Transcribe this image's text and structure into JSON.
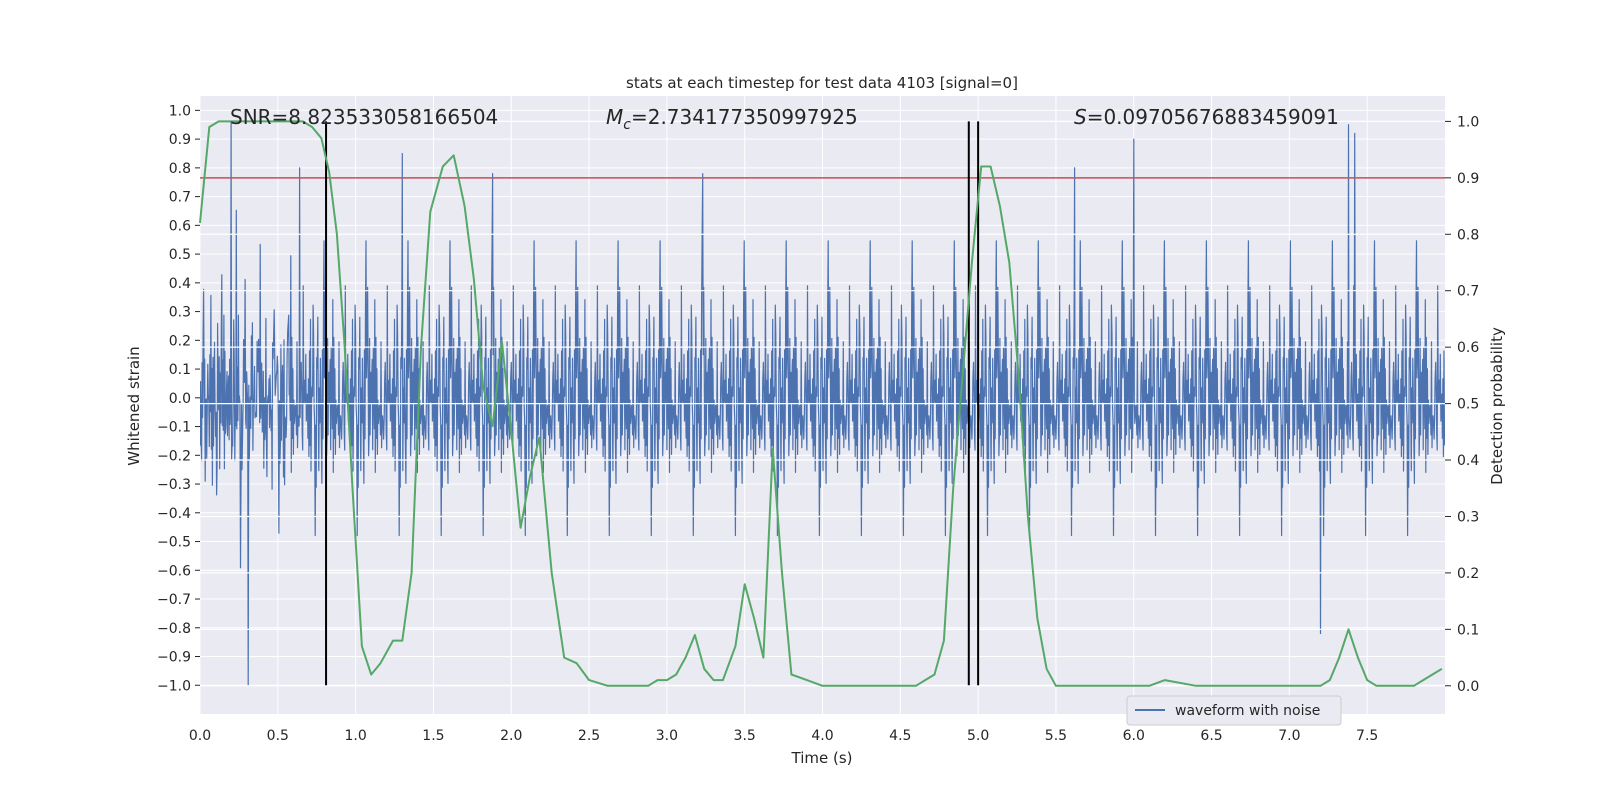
{
  "chart_data": {
    "type": "line",
    "title": "stats at each timestep for test data 4103 [signal=0]",
    "xlabel": "Time (s)",
    "ylabel_left": "Whitened strain",
    "ylabel_right": "Detection probability",
    "xlim": [
      0.0,
      8.0
    ],
    "ylim_left": [
      -1.1,
      1.05
    ],
    "ylim_right": [
      -0.05,
      1.045
    ],
    "x_ticks": [
      0.0,
      0.5,
      1.0,
      1.5,
      2.0,
      2.5,
      3.0,
      3.5,
      4.0,
      4.5,
      5.0,
      5.5,
      6.0,
      6.5,
      7.0,
      7.5
    ],
    "x_tick_labels": [
      "0.0",
      "0.5",
      "1.0",
      "1.5",
      "2.0",
      "2.5",
      "3.0",
      "3.5",
      "4.0",
      "4.5",
      "5.0",
      "5.5",
      "6.0",
      "6.5",
      "7.0",
      "7.5"
    ],
    "left_ticks": [
      1.0,
      0.9,
      0.8,
      0.7,
      0.6,
      0.5,
      0.4,
      0.3,
      0.2,
      0.1,
      0.0,
      -0.1,
      -0.2,
      -0.3,
      -0.4,
      -0.5,
      -0.6,
      -0.7,
      -0.8,
      -0.9,
      -1.0
    ],
    "left_tick_labels": [
      "1.0",
      "0.9",
      "0.8",
      "0.7",
      "0.6",
      "0.5",
      "0.4",
      "0.3",
      "0.2",
      "0.1",
      "0.0",
      "−0.1",
      "−0.2",
      "−0.3",
      "−0.4",
      "−0.5",
      "−0.6",
      "−0.7",
      "−0.8",
      "−0.9",
      "−1.0"
    ],
    "right_ticks": [
      1.0,
      0.9,
      0.8,
      0.7,
      0.6,
      0.5,
      0.4,
      0.3,
      0.2,
      0.1,
      0.0
    ],
    "right_tick_labels": [
      "1.0",
      "0.9",
      "0.8",
      "0.7",
      "0.6",
      "0.5",
      "0.4",
      "0.3",
      "0.2",
      "0.1",
      "0.0"
    ],
    "annotations": {
      "snr": "SNR=8.823533058166504",
      "mc_symbol": "M",
      "mc_sub": "c",
      "mc_value": "=2.734177350997925",
      "s_symbol": "S",
      "s_value": "=0.09705676883459091"
    },
    "threshold": {
      "value": 0.9,
      "axis": "right",
      "color": "#c44e52"
    },
    "vertical_markers": [
      0.81,
      4.94,
      5.0
    ],
    "legend": {
      "label": "waveform with noise",
      "location": "lower-right"
    },
    "series": [
      {
        "name": "waveform with noise",
        "axis": "left",
        "color": "#4c72b0",
        "kind": "noise",
        "note": "approximate noise envelope, ~±0.45 typical with spikes up to ±1.0",
        "peaks": [
          [
            0.2,
            0.96
          ],
          [
            0.31,
            -1.0
          ],
          [
            0.64,
            0.8
          ],
          [
            1.3,
            0.85
          ],
          [
            1.88,
            0.78
          ],
          [
            3.23,
            0.78
          ],
          [
            5.62,
            0.8
          ],
          [
            6.0,
            0.9
          ],
          [
            7.38,
            0.95
          ],
          [
            7.42,
            0.92
          ],
          [
            7.2,
            -0.82
          ]
        ]
      },
      {
        "name": "Detection probability",
        "axis": "right",
        "color": "#55a868",
        "x": [
          0.0,
          0.06,
          0.12,
          0.2,
          0.3,
          0.4,
          0.5,
          0.6,
          0.66,
          0.72,
          0.78,
          0.83,
          0.88,
          0.93,
          0.98,
          1.04,
          1.1,
          1.16,
          1.24,
          1.3,
          1.36,
          1.42,
          1.48,
          1.56,
          1.63,
          1.7,
          1.76,
          1.82,
          1.88,
          1.94,
          2.0,
          2.06,
          2.12,
          2.18,
          2.26,
          2.34,
          2.42,
          2.5,
          2.62,
          2.72,
          2.8,
          2.88,
          2.94,
          3.0,
          3.06,
          3.12,
          3.18,
          3.24,
          3.3,
          3.36,
          3.44,
          3.5,
          3.56,
          3.62,
          3.68,
          3.74,
          3.8,
          3.9,
          4.0,
          4.1,
          4.3,
          4.5,
          4.6,
          4.66,
          4.72,
          4.78,
          4.84,
          4.9,
          4.96,
          5.02,
          5.08,
          5.14,
          5.2,
          5.26,
          5.32,
          5.38,
          5.44,
          5.5,
          5.8,
          6.0,
          6.1,
          6.2,
          6.4,
          6.7,
          7.0,
          7.2,
          7.26,
          7.32,
          7.38,
          7.44,
          7.5,
          7.56,
          7.62,
          7.68,
          7.74,
          7.8,
          7.86,
          7.92,
          7.98
        ],
        "y": [
          0.82,
          0.99,
          1.0,
          1.0,
          1.0,
          1.0,
          1.0,
          1.0,
          1.0,
          0.99,
          0.97,
          0.91,
          0.8,
          0.6,
          0.35,
          0.07,
          0.02,
          0.04,
          0.08,
          0.08,
          0.2,
          0.6,
          0.84,
          0.92,
          0.94,
          0.85,
          0.72,
          0.53,
          0.46,
          0.61,
          0.45,
          0.28,
          0.37,
          0.44,
          0.2,
          0.05,
          0.04,
          0.01,
          0.0,
          0.0,
          0.0,
          0.0,
          0.01,
          0.01,
          0.02,
          0.05,
          0.09,
          0.03,
          0.01,
          0.01,
          0.07,
          0.18,
          0.12,
          0.05,
          0.42,
          0.2,
          0.02,
          0.01,
          0.0,
          0.0,
          0.0,
          0.0,
          0.0,
          0.01,
          0.02,
          0.08,
          0.35,
          0.55,
          0.75,
          0.92,
          0.92,
          0.85,
          0.75,
          0.55,
          0.3,
          0.12,
          0.03,
          0.0,
          0.0,
          0.0,
          0.0,
          0.01,
          0.0,
          0.0,
          0.0,
          0.0,
          0.01,
          0.05,
          0.1,
          0.05,
          0.01,
          0.0,
          0.0,
          0.0,
          0.0,
          0.0,
          0.01,
          0.02,
          0.03
        ]
      }
    ]
  }
}
